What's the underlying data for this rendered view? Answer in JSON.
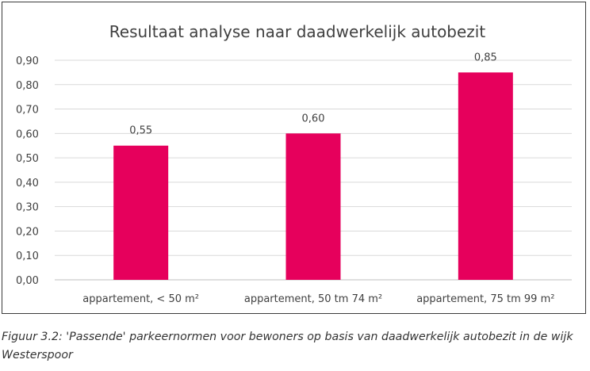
{
  "chart_data": {
    "type": "bar",
    "title": "Resultaat analyse naar daadwerkelijk autobezit",
    "categories": [
      "appartement, < 50 m²",
      "appartement, 50 tm 74 m²",
      "appartement, 75 tm 99 m²"
    ],
    "values": [
      0.55,
      0.6,
      0.85
    ],
    "data_labels": [
      "0,55",
      "0,60",
      "0,85"
    ],
    "y_ticks": [
      "0,00",
      "0,10",
      "0,20",
      "0,30",
      "0,40",
      "0,50",
      "0,60",
      "0,70",
      "0,80",
      "0,90"
    ],
    "ylim": [
      0,
      0.9
    ],
    "grid": true,
    "bar_color": "#e6005c",
    "legend": "none"
  },
  "caption": "Figuur 3.2: 'Passende' parkeernormen voor bewoners op basis van daadwerkelijk autobezit in de wijk Westerspoor"
}
